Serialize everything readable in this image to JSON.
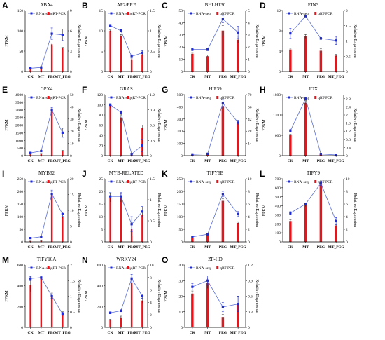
{
  "legend": {
    "line_label": "RNA-seq",
    "bar_label": "qRT-PCR"
  },
  "colors": {
    "line": "#5b6fd6",
    "marker": "#1f2bd1",
    "bar": "#e8141b",
    "error": "#222222"
  },
  "chart_data": [
    {
      "panel": "A",
      "title": "ABA4",
      "type": "bar",
      "categories": [
        "CK",
        "MT",
        "PEG",
        "MT_PEG"
      ],
      "ylabel": "FPKM",
      "y2label": "Relative Expression",
      "ylim": [
        0,
        150
      ],
      "yticks": [
        0,
        50,
        100,
        150
      ],
      "y2lim": [
        0,
        9
      ],
      "y2ticks": [
        0,
        3,
        6,
        9
      ],
      "series": [
        {
          "name": "RNA-seq",
          "type": "line",
          "axis": "left",
          "values": [
            8,
            10,
            93,
            90
          ],
          "errors": [
            1,
            1,
            14,
            14
          ]
        },
        {
          "name": "qRT-PCR",
          "type": "bar",
          "axis": "right",
          "values": [
            0.3,
            0.4,
            4.0,
            3.4
          ],
          "errors": [
            0.05,
            0.05,
            0.2,
            0.15
          ]
        }
      ]
    },
    {
      "panel": "B",
      "title": "AP2/ERF",
      "type": "bar",
      "categories": [
        "CK",
        "MT",
        "PEG",
        "MT_PEG"
      ],
      "ylabel": "FPKM",
      "y2label": "Relative Expression",
      "ylim": [
        0,
        15
      ],
      "yticks": [
        0,
        5,
        10,
        15
      ],
      "y2lim": [
        0,
        1.5
      ],
      "y2ticks": [
        0,
        0.5,
        1.0,
        1.5
      ],
      "series": [
        {
          "name": "RNA-seq",
          "type": "line",
          "axis": "left",
          "values": [
            11.3,
            10.0,
            3.7,
            4.6
          ],
          "errors": [
            0.3,
            0.3,
            0.4,
            0.5
          ]
        },
        {
          "name": "qRT-PCR",
          "type": "bar",
          "axis": "right",
          "values": [
            1.0,
            0.88,
            0.3,
            0.42
          ],
          "errors": [
            0.02,
            0.03,
            0.03,
            0.03
          ]
        }
      ]
    },
    {
      "panel": "C",
      "title": "BHLH130",
      "type": "bar",
      "categories": [
        "CK",
        "MT",
        "PEG",
        "MT_PEG"
      ],
      "ylabel": "FPKM",
      "y2label": "Relative Expression",
      "ylim": [
        0,
        50
      ],
      "yticks": [
        0,
        10,
        20,
        30,
        40,
        50
      ],
      "y2lim": [
        0,
        5
      ],
      "y2ticks": [
        0,
        1,
        2,
        3,
        4,
        5
      ],
      "series": [
        {
          "name": "RNA-seq",
          "type": "line",
          "axis": "left",
          "values": [
            18,
            18,
            43,
            32
          ],
          "errors": [
            1,
            1,
            3,
            5
          ]
        },
        {
          "name": "qRT-PCR",
          "type": "bar",
          "axis": "right",
          "values": [
            1.45,
            1.25,
            3.35,
            2.6
          ],
          "errors": [
            0.1,
            0.1,
            0.4,
            0.3
          ]
        }
      ]
    },
    {
      "panel": "D",
      "title": "EIN3",
      "type": "bar",
      "categories": [
        "CK",
        "MT",
        "PEG",
        "MT_PEG"
      ],
      "ylabel": "FPKM",
      "y2label": "Relative Expression",
      "ylim": [
        0,
        12
      ],
      "yticks": [
        0,
        4,
        8,
        12
      ],
      "y2lim": [
        0,
        2
      ],
      "y2ticks": [
        0,
        0.5,
        1.0,
        1.5,
        2.0
      ],
      "series": [
        {
          "name": "RNA-seq",
          "type": "line",
          "axis": "left",
          "values": [
            7.5,
            10.9,
            6.5,
            6.1
          ],
          "errors": [
            1,
            0.2,
            0.2,
            0.8
          ]
        },
        {
          "name": "qRT-PCR",
          "type": "bar",
          "axis": "right",
          "values": [
            0.72,
            1.15,
            0.68,
            0.52
          ],
          "errors": [
            0.04,
            0.06,
            0.06,
            0.04
          ]
        }
      ]
    },
    {
      "panel": "E",
      "title": "GPX4",
      "type": "bar",
      "categories": [
        "CK",
        "MT",
        "PEG",
        "MT_PEG"
      ],
      "ylabel": "FPKM",
      "y2label": "Relative Expression",
      "ylim": [
        0,
        4000
      ],
      "yticks": [
        0,
        500,
        1000,
        1500,
        2000,
        2500,
        3000,
        3500,
        4000
      ],
      "y2lim": [
        0,
        50
      ],
      "y2ticks": [
        0,
        10,
        20,
        30,
        40,
        50
      ],
      "series": [
        {
          "name": "RNA-seq",
          "type": "line",
          "axis": "left",
          "values": [
            180,
            300,
            3000,
            1500
          ],
          "errors": [
            20,
            30,
            150,
            300
          ]
        },
        {
          "name": "qRT-PCR",
          "type": "bar",
          "axis": "right",
          "values": [
            1,
            1.5,
            37,
            4
          ],
          "errors": [
            0.2,
            0.3,
            1.5,
            0.3
          ]
        }
      ]
    },
    {
      "panel": "F",
      "title": "GRAS",
      "type": "bar",
      "categories": [
        "CK",
        "MT",
        "PEG",
        "MT_PEG"
      ],
      "ylabel": "FPKM",
      "y2label": "Relative Expression",
      "ylim": [
        0,
        120
      ],
      "yticks": [
        0,
        20,
        40,
        60,
        80,
        100,
        120
      ],
      "y2lim": [
        0,
        1.2
      ],
      "y2ticks": [
        0,
        0.3,
        0.6,
        0.9,
        1.2
      ],
      "series": [
        {
          "name": "RNA-seq",
          "type": "line",
          "axis": "left",
          "values": [
            100,
            85,
            3,
            20
          ],
          "errors": [
            2,
            3,
            1,
            12
          ]
        },
        {
          "name": "qRT-PCR",
          "type": "bar",
          "axis": "right",
          "values": [
            0.98,
            0.75,
            0.04,
            0.55
          ],
          "errors": [
            0.04,
            0.1,
            0.01,
            0.05
          ]
        }
      ]
    },
    {
      "panel": "G",
      "title": "HIP39",
      "type": "bar",
      "categories": [
        "CK",
        "MT",
        "PEG",
        "MT_PEG"
      ],
      "ylabel": "FPKM",
      "y2label": "Relative Expression",
      "ylim": [
        0,
        500
      ],
      "yticks": [
        0,
        100,
        200,
        300,
        400,
        500
      ],
      "y2lim": [
        0,
        70
      ],
      "y2ticks": [
        14,
        28,
        42,
        56,
        70
      ],
      "series": [
        {
          "name": "RNA-seq",
          "type": "line",
          "axis": "left",
          "values": [
            10,
            15,
            430,
            270
          ],
          "errors": [
            2,
            2,
            30,
            20
          ]
        },
        {
          "name": "qRT-PCR",
          "type": "bar",
          "axis": "right",
          "values": [
            1,
            1,
            57,
            37
          ],
          "errors": [
            0.1,
            0.1,
            3,
            2
          ]
        }
      ]
    },
    {
      "panel": "H",
      "title": "JOX",
      "type": "bar",
      "categories": [
        "CK",
        "MT",
        "PEG",
        "MT_PEG"
      ],
      "ylabel": "FPKM",
      "y2label": "Relative Expression",
      "ylim": [
        0,
        1800
      ],
      "yticks": [
        0,
        600,
        1200,
        1800
      ],
      "y2lim": [
        0,
        3.0
      ],
      "y2ticks": [
        0,
        0.4,
        0.8,
        1.2,
        1.6,
        2.0,
        2.4,
        2.8
      ],
      "series": [
        {
          "name": "RNA-seq",
          "type": "line",
          "axis": "left",
          "values": [
            730,
            1680,
            50,
            20
          ],
          "errors": [
            40,
            40,
            10,
            5
          ]
        },
        {
          "name": "qRT-PCR",
          "type": "bar",
          "axis": "right",
          "values": [
            1.0,
            2.6,
            0.1,
            0.03
          ],
          "errors": [
            0.05,
            0.1,
            0.02,
            0.01
          ]
        }
      ]
    },
    {
      "panel": "I",
      "title": "MYB62",
      "type": "bar",
      "categories": [
        "CK",
        "MT",
        "PEG",
        "MT_PEG"
      ],
      "ylabel": "FPKM",
      "y2label": "Relative Expression",
      "ylim": [
        0,
        250
      ],
      "yticks": [
        0,
        50,
        100,
        150,
        200,
        250
      ],
      "y2lim": [
        0,
        20
      ],
      "y2ticks": [
        0,
        5,
        10,
        15,
        20
      ],
      "series": [
        {
          "name": "RNA-seq",
          "type": "line",
          "axis": "left",
          "values": [
            15,
            20,
            190,
            110
          ],
          "errors": [
            3,
            3,
            15,
            8
          ]
        },
        {
          "name": "qRT-PCR",
          "type": "bar",
          "axis": "right",
          "values": [
            0.2,
            0.3,
            15,
            8
          ],
          "errors": [
            0.05,
            0.05,
            1,
            0.5
          ]
        }
      ]
    },
    {
      "panel": "J",
      "title": "MYB-RELATED",
      "type": "bar",
      "categories": [
        "CK",
        "MT",
        "PEG",
        "MT_PEG"
      ],
      "ylabel": "FPKM",
      "y2label": "Relative Expression",
      "ylim": [
        0,
        25
      ],
      "yticks": [
        0,
        5,
        10,
        15,
        20,
        25
      ],
      "y2lim": [
        0,
        1.5
      ],
      "y2ticks": [
        0,
        0.5,
        1.0,
        1.5
      ],
      "series": [
        {
          "name": "RNA-seq",
          "type": "line",
          "axis": "left",
          "values": [
            18,
            18,
            7,
            12
          ],
          "errors": [
            1.5,
            1.5,
            3,
            2
          ]
        },
        {
          "name": "qRT-PCR",
          "type": "bar",
          "axis": "right",
          "values": [
            1.05,
            1.05,
            0.3,
            0.65
          ],
          "errors": [
            0.1,
            0.1,
            0.15,
            0.05
          ]
        }
      ]
    },
    {
      "panel": "K",
      "title": "TIFY6B",
      "type": "bar",
      "categories": [
        "CK",
        "MT",
        "PEG",
        "MT_PEG"
      ],
      "ylabel": "FPKM",
      "y2label": "Relative Expression",
      "ylim": [
        0,
        250
      ],
      "yticks": [
        0,
        50,
        100,
        150,
        200,
        250
      ],
      "y2lim": [
        0,
        10
      ],
      "y2ticks": [
        0,
        2,
        4,
        6,
        8,
        10
      ],
      "series": [
        {
          "name": "RNA-seq",
          "type": "line",
          "axis": "left",
          "values": [
            20,
            30,
            190,
            110
          ],
          "errors": [
            3,
            3,
            10,
            10
          ]
        },
        {
          "name": "qRT-PCR",
          "type": "bar",
          "axis": "right",
          "values": [
            0.7,
            1.2,
            6.5,
            3
          ],
          "errors": [
            0.1,
            0.2,
            0.3,
            0.2
          ]
        }
      ]
    },
    {
      "panel": "L",
      "title": "TIFY9",
      "type": "bar",
      "categories": [
        "CK",
        "MT",
        "PEG",
        "MT_PEG"
      ],
      "ylabel": "FPKM",
      "y2label": "Relative Expression",
      "ylim": [
        0,
        700
      ],
      "yticks": [
        0,
        100,
        200,
        300,
        400,
        500,
        600,
        700
      ],
      "y2lim": [
        0,
        10
      ],
      "y2ticks": [
        0,
        2,
        4,
        6,
        8,
        10
      ],
      "series": [
        {
          "name": "RNA-seq",
          "type": "line",
          "axis": "left",
          "values": [
            320,
            420,
            650,
            230
          ],
          "errors": [
            15,
            10,
            25,
            40
          ]
        },
        {
          "name": "qRT-PCR",
          "type": "bar",
          "axis": "right",
          "values": [
            3.3,
            5.8,
            9.2,
            2.6
          ],
          "errors": [
            0.2,
            0.2,
            0.3,
            0.2
          ]
        }
      ]
    },
    {
      "panel": "M",
      "title": "TIFY10A",
      "type": "bar",
      "categories": [
        "CK",
        "MT",
        "PEG",
        "MT_PEG"
      ],
      "ylabel": "FPKM",
      "y2label": "Relative Expression",
      "ylim": [
        0,
        600
      ],
      "yticks": [
        0,
        200,
        400,
        600
      ],
      "y2lim": [
        0,
        2.0
      ],
      "y2ticks": [
        0,
        0.5,
        1.0,
        1.5,
        2.0
      ],
      "series": [
        {
          "name": "RNA-seq",
          "type": "line",
          "axis": "left",
          "values": [
            470,
            480,
            300,
            130
          ],
          "errors": [
            20,
            15,
            20,
            15
          ]
        },
        {
          "name": "qRT-PCR",
          "type": "bar",
          "axis": "right",
          "values": [
            1.35,
            1.6,
            1.0,
            0.45
          ],
          "errors": [
            0.2,
            0.05,
            0.1,
            0.05
          ]
        }
      ]
    },
    {
      "panel": "N",
      "title": "WRKY24",
      "type": "bar",
      "categories": [
        "CK",
        "MT",
        "PEG",
        "MT_PEG"
      ],
      "ylabel": "FPKM",
      "y2label": "Relative Expression",
      "ylim": [
        0,
        600
      ],
      "yticks": [
        0,
        200,
        400,
        600
      ],
      "y2lim": [
        0,
        10
      ],
      "y2ticks": [
        0,
        2,
        4,
        6,
        8,
        10
      ],
      "series": [
        {
          "name": "RNA-seq",
          "type": "line",
          "axis": "left",
          "values": [
            140,
            160,
            470,
            300
          ],
          "errors": [
            10,
            10,
            40,
            20
          ]
        },
        {
          "name": "qRT-PCR",
          "type": "bar",
          "axis": "right",
          "values": [
            1.2,
            1.6,
            7.2,
            4.3
          ],
          "errors": [
            0.1,
            0.2,
            0.5,
            0.4
          ]
        }
      ]
    },
    {
      "panel": "O",
      "title": "ZF-HD",
      "type": "bar",
      "categories": [
        "CK",
        "MT",
        "PEG",
        "MT_PEG"
      ],
      "ylabel": "FPKM",
      "y2label": "Relative Expression",
      "ylim": [
        0,
        40
      ],
      "yticks": [
        0,
        10,
        20,
        30,
        40
      ],
      "y2lim": [
        0,
        1.2
      ],
      "y2ticks": [
        0,
        0.3,
        0.6,
        0.9,
        1.2
      ],
      "series": [
        {
          "name": "RNA-seq",
          "type": "line",
          "axis": "left",
          "values": [
            26,
            30,
            13,
            15
          ],
          "errors": [
            2,
            3,
            3,
            5
          ]
        },
        {
          "name": "qRT-PCR",
          "type": "bar",
          "axis": "right",
          "values": [
            0.65,
            0.85,
            0.2,
            0.45
          ],
          "errors": [
            0.05,
            0.1,
            0.05,
            0.15
          ]
        }
      ]
    }
  ]
}
